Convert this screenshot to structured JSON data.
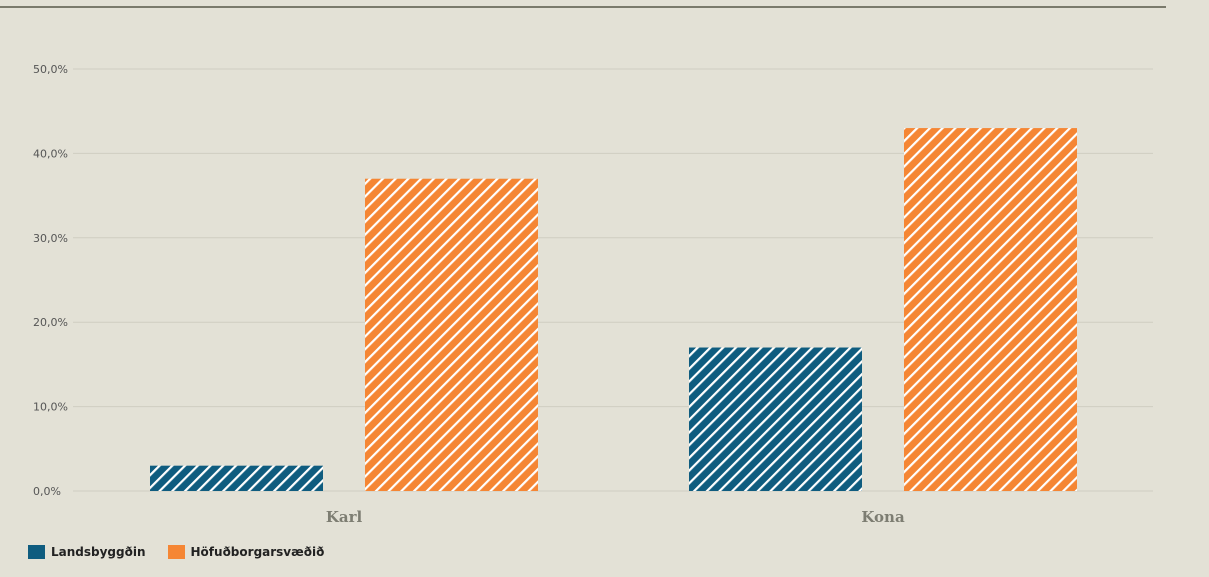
{
  "colors": {
    "background": "#e3e1d6",
    "landsbyggdin": "#0f5c7f",
    "hofudborgarsvaedid": "#f58634",
    "grid": "#cfcdc1"
  },
  "legend": {
    "items": [
      {
        "label": "Landsbyggðin",
        "color": "#0f5c7f"
      },
      {
        "label": "Höfuðborgarsvæðið",
        "color": "#f58634"
      }
    ],
    "placement": "bottom-left"
  },
  "chart_data": {
    "type": "bar",
    "categories": [
      "Karl",
      "Kona"
    ],
    "series": [
      {
        "name": "Landsbyggðin",
        "values": [
          3.0,
          17.0
        ]
      },
      {
        "name": "Höfuðborgarsvæðið",
        "values": [
          37.0,
          43.0
        ]
      }
    ],
    "y_ticks": [
      "0,0%",
      "10,0%",
      "20,0%",
      "30,0%",
      "40,0%",
      "50,0%"
    ],
    "ylim": [
      0,
      50
    ],
    "grid": true,
    "bar_pattern": "diagonal-hatch"
  }
}
